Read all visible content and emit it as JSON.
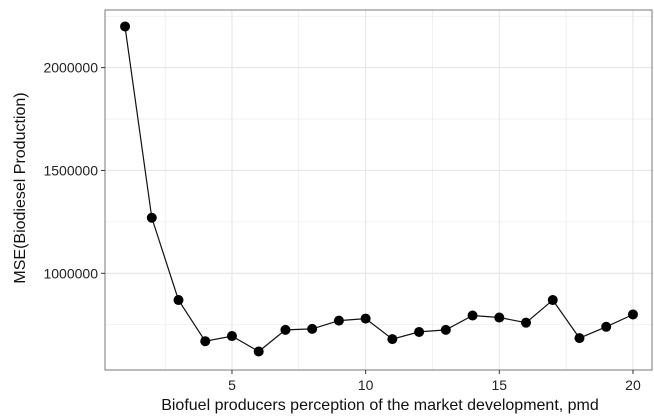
{
  "chart_data": {
    "type": "line",
    "xlabel": "Biofuel producers perception of the market development, pmd",
    "ylabel": "MSE(Biodiesel Production)",
    "xlim": [
      0.25,
      20.75
    ],
    "ylim": [
      530000,
      2280000
    ],
    "x_ticks": [
      5,
      10,
      15,
      20
    ],
    "y_ticks": [
      1000000,
      1500000,
      2000000
    ],
    "grid": true,
    "series": [
      {
        "x": [
          1,
          2,
          3,
          4,
          5,
          6,
          7,
          8,
          9,
          10,
          11,
          12,
          13,
          14,
          15,
          16,
          17,
          18,
          19,
          20
        ],
        "y": [
          2200000,
          1270000,
          870000,
          670000,
          695000,
          620000,
          725000,
          730000,
          770000,
          780000,
          680000,
          715000,
          725000,
          795000,
          785000,
          760000,
          870000,
          685000,
          740000,
          800000
        ]
      }
    ],
    "colors": {
      "line": "#111111",
      "marker": "#000000",
      "grid": "#e6e6e6",
      "panel_border": "#7a7a7a"
    }
  }
}
